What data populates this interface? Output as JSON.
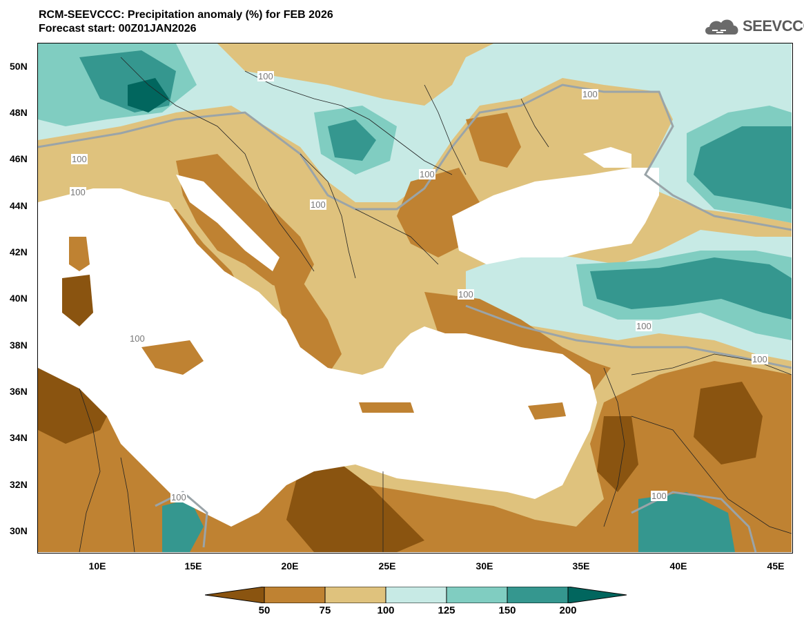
{
  "header": {
    "title": "RCM-SEEVCCC: Precipitation anomaly (%) for FEB 2026",
    "subtitle": "Forecast start: 00Z01JAN2026",
    "logo_text": "SEEVCCC"
  },
  "axes": {
    "lat_labels": [
      "50N",
      "48N",
      "46N",
      "44N",
      "42N",
      "40N",
      "38N",
      "36N",
      "34N",
      "32N",
      "30N"
    ],
    "lon_labels": [
      "10E",
      "15E",
      "20E",
      "25E",
      "30E",
      "35E",
      "40E",
      "45E"
    ]
  },
  "contour_labels": [
    "100",
    "100",
    "100",
    "100",
    "100",
    "100",
    "100",
    "100",
    "100",
    "100",
    "100",
    "100"
  ],
  "colorbar": {
    "ticks": [
      "50",
      "75",
      "100",
      "125",
      "150",
      "200"
    ],
    "colors": [
      "#8a5410",
      "#bf8232",
      "#dfc27d",
      "#c7eae5",
      "#80cdc1",
      "#35978f",
      "#01665e"
    ]
  },
  "colors": {
    "land_very_dry": "#8a5410",
    "land_dry": "#bf8232",
    "land_slightly_dry": "#dfc27d",
    "land_slightly_wet": "#c7eae5",
    "land_wet": "#80cdc1",
    "land_very_wet": "#35978f",
    "sea": "#ffffff"
  }
}
